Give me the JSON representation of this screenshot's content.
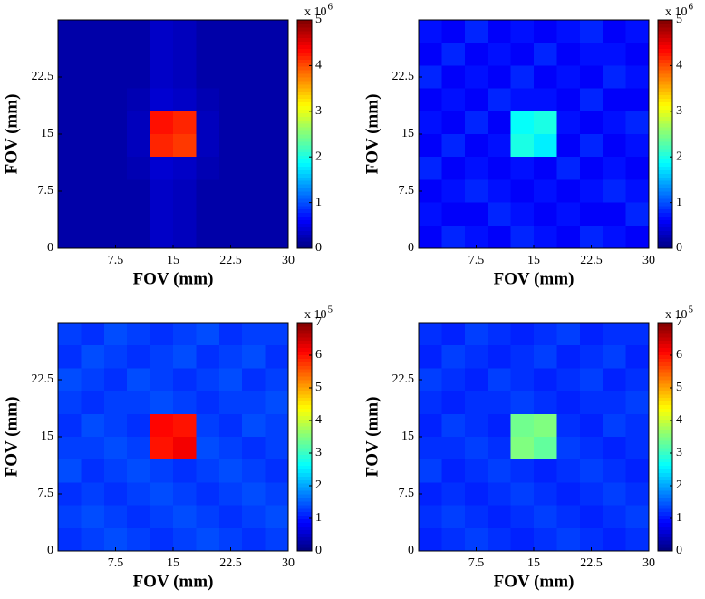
{
  "chart_data": [
    {
      "type": "heatmap",
      "xlabel": "FOV (mm)",
      "ylabel": "FOV (mm)",
      "xlim": [
        0,
        30
      ],
      "ylim": [
        0,
        30
      ],
      "xticks": [
        7.5,
        15,
        22.5,
        30
      ],
      "yticks": [
        0,
        7.5,
        15,
        22.5
      ],
      "colormap": "jet",
      "clim": [
        0,
        5
      ],
      "cticks": [
        0,
        1,
        2,
        3,
        4,
        5
      ],
      "cbar_multiplier": "x 10",
      "cbar_exponent": "6",
      "values": [
        [
          0.2,
          0.2,
          0.2,
          0.2,
          0.35,
          0.3,
          0.2,
          0.2,
          0.2,
          0.2
        ],
        [
          0.2,
          0.2,
          0.2,
          0.2,
          0.35,
          0.3,
          0.2,
          0.2,
          0.2,
          0.2
        ],
        [
          0.2,
          0.2,
          0.2,
          0.2,
          0.35,
          0.3,
          0.2,
          0.2,
          0.2,
          0.2
        ],
        [
          0.2,
          0.2,
          0.2,
          0.25,
          0.4,
          0.35,
          0.25,
          0.2,
          0.2,
          0.2
        ],
        [
          0.2,
          0.2,
          0.2,
          0.3,
          4.3,
          4.2,
          0.3,
          0.2,
          0.2,
          0.2
        ],
        [
          0.2,
          0.2,
          0.2,
          0.3,
          4.2,
          4.1,
          0.3,
          0.2,
          0.2,
          0.2
        ],
        [
          0.2,
          0.2,
          0.2,
          0.25,
          0.4,
          0.35,
          0.25,
          0.2,
          0.2,
          0.2
        ],
        [
          0.2,
          0.2,
          0.2,
          0.2,
          0.35,
          0.3,
          0.2,
          0.2,
          0.2,
          0.2
        ],
        [
          0.2,
          0.2,
          0.2,
          0.2,
          0.35,
          0.3,
          0.2,
          0.2,
          0.2,
          0.2
        ],
        [
          0.2,
          0.2,
          0.2,
          0.2,
          0.35,
          0.3,
          0.2,
          0.2,
          0.2,
          0.2
        ]
      ]
    },
    {
      "type": "heatmap",
      "xlabel": "FOV (mm)",
      "ylabel": "FOV (mm)",
      "xlim": [
        0,
        30
      ],
      "ylim": [
        0,
        30
      ],
      "xticks": [
        7.5,
        15,
        22.5,
        30
      ],
      "yticks": [
        0,
        7.5,
        15,
        22.5
      ],
      "colormap": "jet",
      "clim": [
        0,
        5
      ],
      "cticks": [
        0,
        1,
        2,
        3,
        4,
        5
      ],
      "cbar_multiplier": "x 10",
      "cbar_exponent": "6",
      "values": [
        [
          0.7,
          0.6,
          0.8,
          0.6,
          0.7,
          0.6,
          0.7,
          0.8,
          0.6,
          0.7
        ],
        [
          0.6,
          0.8,
          0.6,
          0.7,
          0.6,
          0.8,
          0.6,
          0.7,
          0.7,
          0.6
        ],
        [
          0.8,
          0.6,
          0.7,
          0.6,
          0.8,
          0.6,
          0.7,
          0.6,
          0.8,
          0.7
        ],
        [
          0.6,
          0.7,
          0.6,
          0.8,
          0.7,
          0.7,
          0.6,
          0.8,
          0.6,
          0.6
        ],
        [
          0.7,
          0.6,
          0.8,
          0.6,
          1.9,
          2.0,
          0.7,
          0.6,
          0.7,
          0.8
        ],
        [
          0.6,
          0.8,
          0.6,
          0.7,
          2.0,
          1.8,
          0.6,
          0.8,
          0.6,
          0.7
        ],
        [
          0.8,
          0.6,
          0.7,
          0.6,
          0.7,
          0.6,
          0.8,
          0.6,
          0.7,
          0.6
        ],
        [
          0.6,
          0.7,
          0.8,
          0.7,
          0.6,
          0.7,
          0.6,
          0.7,
          0.8,
          0.7
        ],
        [
          0.7,
          0.6,
          0.6,
          0.8,
          0.7,
          0.6,
          0.7,
          0.6,
          0.6,
          0.8
        ],
        [
          0.6,
          0.8,
          0.7,
          0.6,
          0.8,
          0.7,
          0.6,
          0.8,
          0.7,
          0.6
        ]
      ]
    },
    {
      "type": "heatmap",
      "xlabel": "FOV (mm)",
      "ylabel": "FOV (mm)",
      "xlim": [
        0,
        30
      ],
      "ylim": [
        0,
        30
      ],
      "xticks": [
        7.5,
        15,
        22.5,
        30
      ],
      "yticks": [
        0,
        7.5,
        15,
        22.5
      ],
      "colormap": "jet",
      "clim": [
        0,
        7
      ],
      "cticks": [
        0,
        1,
        2,
        3,
        4,
        5,
        6,
        7
      ],
      "cbar_multiplier": "x 10",
      "cbar_exponent": "5",
      "values": [
        [
          1.3,
          1.2,
          1.4,
          1.3,
          1.2,
          1.3,
          1.4,
          1.2,
          1.3,
          1.3
        ],
        [
          1.2,
          1.4,
          1.3,
          1.2,
          1.3,
          1.4,
          1.2,
          1.3,
          1.4,
          1.2
        ],
        [
          1.4,
          1.3,
          1.2,
          1.4,
          1.3,
          1.2,
          1.3,
          1.4,
          1.2,
          1.3
        ],
        [
          1.3,
          1.2,
          1.3,
          1.3,
          1.4,
          1.3,
          1.2,
          1.3,
          1.3,
          1.4
        ],
        [
          1.2,
          1.4,
          1.3,
          1.2,
          6.1,
          6.0,
          1.3,
          1.2,
          1.4,
          1.3
        ],
        [
          1.3,
          1.3,
          1.4,
          1.3,
          6.0,
          6.2,
          1.4,
          1.3,
          1.2,
          1.3
        ],
        [
          1.4,
          1.2,
          1.3,
          1.4,
          1.3,
          1.2,
          1.3,
          1.4,
          1.3,
          1.2
        ],
        [
          1.2,
          1.3,
          1.2,
          1.3,
          1.4,
          1.3,
          1.2,
          1.3,
          1.4,
          1.3
        ],
        [
          1.3,
          1.4,
          1.3,
          1.2,
          1.3,
          1.4,
          1.3,
          1.2,
          1.3,
          1.4
        ],
        [
          1.2,
          1.3,
          1.4,
          1.3,
          1.2,
          1.3,
          1.4,
          1.3,
          1.2,
          1.3
        ]
      ]
    },
    {
      "type": "heatmap",
      "xlabel": "FOV (mm)",
      "ylabel": "FOV (mm)",
      "xlim": [
        0,
        30
      ],
      "ylim": [
        0,
        30
      ],
      "xticks": [
        7.5,
        15,
        22.5,
        30
      ],
      "yticks": [
        0,
        7.5,
        15,
        22.5
      ],
      "colormap": "jet",
      "clim": [
        0,
        7
      ],
      "cticks": [
        0,
        1,
        2,
        3,
        4,
        5,
        6,
        7
      ],
      "cbar_multiplier": "x 10",
      "cbar_exponent": "5",
      "values": [
        [
          1.2,
          1.1,
          1.3,
          1.2,
          1.1,
          1.2,
          1.3,
          1.1,
          1.2,
          1.2
        ],
        [
          1.1,
          1.3,
          1.2,
          1.1,
          1.2,
          1.3,
          1.1,
          1.2,
          1.3,
          1.1
        ],
        [
          1.3,
          1.2,
          1.1,
          1.3,
          1.2,
          1.1,
          1.2,
          1.3,
          1.1,
          1.2
        ],
        [
          1.2,
          1.1,
          1.2,
          1.2,
          1.3,
          1.2,
          1.1,
          1.2,
          1.2,
          1.3
        ],
        [
          1.1,
          1.3,
          1.2,
          1.1,
          3.4,
          3.5,
          1.2,
          1.1,
          1.3,
          1.2
        ],
        [
          1.2,
          1.2,
          1.3,
          1.2,
          3.5,
          3.3,
          1.3,
          1.2,
          1.1,
          1.2
        ],
        [
          1.3,
          1.1,
          1.2,
          1.3,
          1.2,
          1.1,
          1.2,
          1.3,
          1.2,
          1.1
        ],
        [
          1.1,
          1.2,
          1.1,
          1.2,
          1.3,
          1.2,
          1.1,
          1.2,
          1.3,
          1.2
        ],
        [
          1.2,
          1.3,
          1.2,
          1.1,
          1.2,
          1.3,
          1.2,
          1.1,
          1.2,
          1.3
        ],
        [
          1.1,
          1.2,
          1.3,
          1.2,
          1.1,
          1.2,
          1.3,
          1.2,
          1.1,
          1.2
        ]
      ]
    }
  ]
}
